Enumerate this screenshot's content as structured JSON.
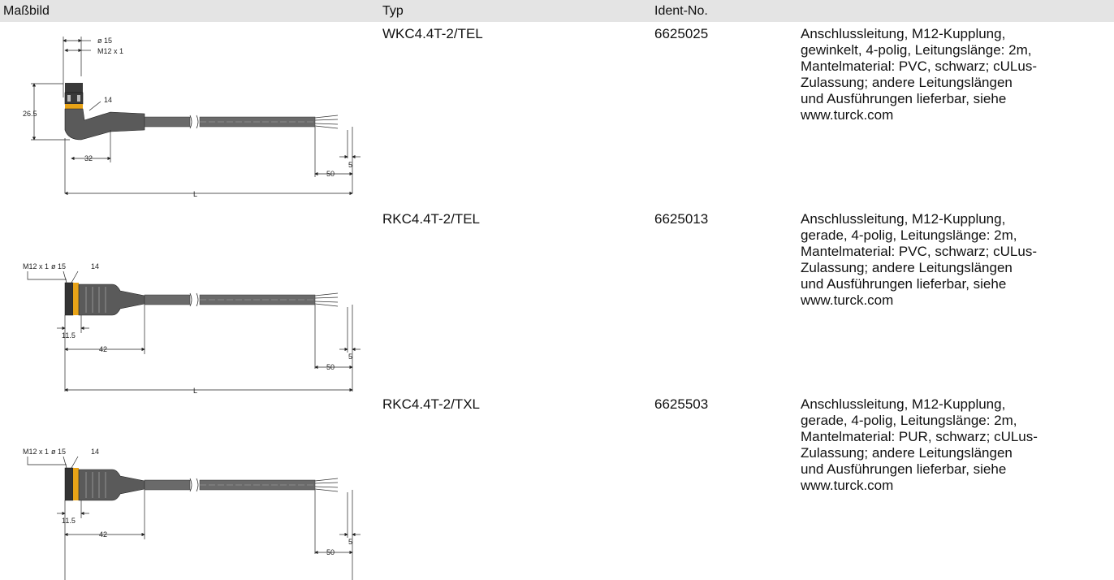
{
  "header": {
    "col_drawing": "Maßbild",
    "col_type": "Typ",
    "col_ident": "Ident-No."
  },
  "products": [
    {
      "type": "WKC4.4T-2/TEL",
      "ident": "6625025",
      "description_lines": [
        "Anschlussleitung, M12-Kupplung,",
        "gewinkelt, 4-polig, Leitungslänge: 2m,",
        "Mantelmaterial: PVC, schwarz; cULus-",
        "Zulassung; andere Leitungslängen",
        "und Ausführungen lieferbar, siehe",
        "www.turck.com"
      ],
      "dims": {
        "dia": "ø 15",
        "thread": "M12 x 1",
        "wrench": "14",
        "height": "26.5",
        "body_len": "32",
        "strip": "5",
        "strip_len": "50",
        "total": "L"
      }
    },
    {
      "type": "RKC4.4T-2/TEL",
      "ident": "6625013",
      "description_lines": [
        "Anschlussleitung, M12-Kupplung,",
        "gerade, 4-polig, Leitungslänge: 2m,",
        "Mantelmaterial: PVC, schwarz; cULus-",
        "Zulassung; andere Leitungslängen",
        "und Ausführungen lieferbar, siehe",
        "www.turck.com"
      ],
      "dims": {
        "thread": "M12 x 1",
        "dia": "ø 15",
        "wrench": "14",
        "nut_len": "11.5",
        "body_len": "42",
        "strip": "5",
        "strip_len": "50",
        "total": "L"
      }
    },
    {
      "type": "RKC4.4T-2/TXL",
      "ident": "6625503",
      "description_lines": [
        "Anschlussleitung, M12-Kupplung,",
        "gerade, 4-polig, Leitungslänge: 2m,",
        "Mantelmaterial: PUR, schwarz; cULus-",
        "Zulassung; andere Leitungslängen",
        "und Ausführungen lieferbar, siehe",
        "www.turck.com"
      ],
      "dims": {
        "thread": "M12 x 1",
        "dia": "ø 15",
        "wrench": "14",
        "nut_len": "11.5",
        "body_len": "42",
        "strip": "5",
        "strip_len": "50"
      }
    }
  ]
}
